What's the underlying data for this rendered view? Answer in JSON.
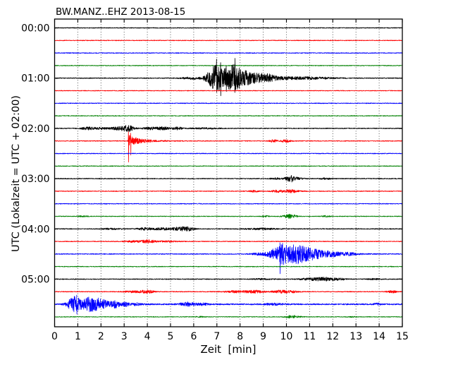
{
  "chart_data": {
    "type": "line",
    "subtype": "seismogram-helicorder-dayplot",
    "title": "BW.MANZ..EHZ 2013-08-15",
    "xlabel": "Zeit  [min]",
    "ylabel": "UTC (Lokalzeit = UTC + 02:00)",
    "x_range": [
      0,
      15
    ],
    "x_ticks": [
      0,
      1,
      2,
      3,
      4,
      5,
      6,
      7,
      8,
      9,
      10,
      11,
      12,
      13,
      14,
      15
    ],
    "grid": "dotted-vertical-per-minute",
    "legend": "none",
    "trace_color_cycle": [
      "#000000",
      "#ff0000",
      "#0000ff",
      "#008000"
    ],
    "minutes_per_row": 15,
    "row_step_minutes": 15,
    "hour_labels": [
      "00:00",
      "01:00",
      "02:00",
      "03:00",
      "04:00",
      "05:00"
    ],
    "rows": [
      {
        "label": "00:00",
        "color": "#000000",
        "noise": 0.55,
        "bumps": [],
        "quakes": [],
        "spikes": []
      },
      {
        "label": "",
        "color": "#ff0000",
        "noise": 0.5,
        "bumps": [],
        "quakes": [],
        "spikes": []
      },
      {
        "label": "",
        "color": "#0000ff",
        "noise": 0.55,
        "bumps": [],
        "quakes": [],
        "spikes": []
      },
      {
        "label": "",
        "color": "#008000",
        "noise": 0.5,
        "bumps": [],
        "quakes": [],
        "spikes": []
      },
      {
        "label": "01:00",
        "color": "#000000",
        "noise": 0.6,
        "bumps": [
          [
            5.95,
            0.35,
            1.4
          ],
          [
            6.65,
            0.15,
            6
          ],
          [
            7.75,
            0.18,
            13
          ],
          [
            8.2,
            0.2,
            5
          ],
          [
            8.6,
            0.3,
            3.5
          ],
          [
            9.15,
            0.3,
            4.2
          ],
          [
            10.2,
            0.7,
            1.4
          ],
          [
            11.4,
            0.6,
            1.0
          ]
        ],
        "quakes": [
          [
            7.0,
            0.35,
            0.7,
            20
          ]
        ],
        "spikes": [
          [
            6.98,
            27,
            20
          ],
          [
            7.16,
            22,
            25
          ],
          [
            7.4,
            17,
            19
          ],
          [
            7.78,
            28,
            14
          ]
        ]
      },
      {
        "label": "",
        "color": "#ff0000",
        "noise": 0.5,
        "bumps": [],
        "quakes": [],
        "spikes": []
      },
      {
        "label": "",
        "color": "#0000ff",
        "noise": 0.55,
        "bumps": [],
        "quakes": [],
        "spikes": []
      },
      {
        "label": "",
        "color": "#008000",
        "noise": 0.5,
        "bumps": [],
        "quakes": [],
        "spikes": []
      },
      {
        "label": "02:00",
        "color": "#000000",
        "noise": 0.6,
        "bumps": [
          [
            1.4,
            0.2,
            1.8
          ],
          [
            2.0,
            0.25,
            1.4
          ],
          [
            2.9,
            0.3,
            2.6
          ],
          [
            3.2,
            0.15,
            2.8
          ],
          [
            4.1,
            0.25,
            1.7
          ],
          [
            4.7,
            0.2,
            1.9
          ],
          [
            5.3,
            0.15,
            1.9
          ],
          [
            6.5,
            0.5,
            0.7
          ]
        ],
        "quakes": [],
        "spikes": []
      },
      {
        "label": "",
        "color": "#ff0000",
        "noise": 0.55,
        "bumps": [
          [
            9.45,
            0.12,
            1.6
          ],
          [
            10.0,
            0.15,
            2.0
          ]
        ],
        "quakes": [
          [
            3.22,
            0.06,
            0.5,
            8
          ]
        ],
        "spikes": [
          [
            3.18,
            13,
            30
          ],
          [
            3.28,
            11,
            20
          ]
        ]
      },
      {
        "label": "",
        "color": "#0000ff",
        "noise": 0.55,
        "bumps": [],
        "quakes": [],
        "spikes": []
      },
      {
        "label": "",
        "color": "#008000",
        "noise": 0.5,
        "bumps": [],
        "quakes": [],
        "spikes": []
      },
      {
        "label": "03:00",
        "color": "#000000",
        "noise": 0.6,
        "bumps": [
          [
            9.6,
            0.2,
            0.8
          ],
          [
            10.15,
            0.13,
            4.2
          ],
          [
            10.45,
            0.2,
            1.5
          ],
          [
            11.7,
            0.15,
            1.1
          ]
        ],
        "quakes": [],
        "spikes": []
      },
      {
        "label": "",
        "color": "#ff0000",
        "noise": 0.55,
        "bumps": [
          [
            8.6,
            0.15,
            1.1
          ],
          [
            9.6,
            0.2,
            1.4
          ],
          [
            10.2,
            0.25,
            2.0
          ]
        ],
        "quakes": [],
        "spikes": []
      },
      {
        "label": "",
        "color": "#0000ff",
        "noise": 0.55,
        "bumps": [],
        "quakes": [],
        "spikes": []
      },
      {
        "label": "",
        "color": "#008000",
        "noise": 0.5,
        "bumps": [
          [
            1.2,
            0.15,
            0.7
          ],
          [
            9.1,
            0.1,
            0.9
          ],
          [
            10.15,
            0.2,
            2.8
          ],
          [
            11.7,
            0.15,
            0.8
          ]
        ],
        "quakes": [],
        "spikes": []
      },
      {
        "label": "04:00",
        "color": "#000000",
        "noise": 0.6,
        "bumps": [
          [
            2.5,
            0.3,
            0.8
          ],
          [
            3.9,
            0.25,
            1.5
          ],
          [
            4.6,
            0.25,
            1.3
          ],
          [
            5.45,
            0.3,
            2.5
          ],
          [
            5.8,
            0.15,
            1.8
          ],
          [
            8.9,
            0.5,
            1.0
          ]
        ],
        "quakes": [],
        "spikes": []
      },
      {
        "label": "",
        "color": "#ff0000",
        "noise": 0.55,
        "bumps": [
          [
            3.4,
            0.3,
            1.0
          ],
          [
            4.05,
            0.2,
            2.2
          ],
          [
            4.9,
            0.3,
            0.9
          ]
        ],
        "quakes": [],
        "spikes": []
      },
      {
        "label": "",
        "color": "#0000ff",
        "noise": 0.6,
        "bumps": [
          [
            8.9,
            0.3,
            1.5
          ],
          [
            9.55,
            0.25,
            7
          ],
          [
            10.55,
            0.25,
            7
          ],
          [
            11.2,
            0.3,
            4.5
          ],
          [
            11.95,
            0.2,
            3
          ],
          [
            12.6,
            0.3,
            1.6
          ]
        ],
        "quakes": [
          [
            9.9,
            0.35,
            0.9,
            13
          ]
        ],
        "spikes": [
          [
            9.72,
            16,
            28
          ]
        ]
      },
      {
        "label": "",
        "color": "#008000",
        "noise": 0.5,
        "bumps": [],
        "quakes": [],
        "spikes": []
      },
      {
        "label": "05:00",
        "color": "#000000",
        "noise": 0.6,
        "bumps": [
          [
            9.0,
            0.3,
            0.7
          ],
          [
            10.9,
            0.25,
            1.2
          ],
          [
            11.6,
            0.35,
            2.4
          ],
          [
            12.3,
            0.2,
            1.0
          ],
          [
            13.8,
            0.2,
            0.7
          ]
        ],
        "quakes": [],
        "spikes": []
      },
      {
        "label": "",
        "color": "#ff0000",
        "noise": 0.55,
        "bumps": [
          [
            3.4,
            0.3,
            1.2
          ],
          [
            4.0,
            0.2,
            2.2
          ],
          [
            7.8,
            0.3,
            1.4
          ],
          [
            8.65,
            0.3,
            1.9
          ],
          [
            9.75,
            0.25,
            2.0
          ],
          [
            10.3,
            0.2,
            1.1
          ],
          [
            14.55,
            0.15,
            1.7
          ]
        ],
        "quakes": [],
        "spikes": []
      },
      {
        "label": "",
        "color": "#0000ff",
        "noise": 0.9,
        "bumps": [
          [
            1.55,
            0.15,
            6
          ],
          [
            1.85,
            0.12,
            5
          ],
          [
            2.15,
            0.12,
            4.5
          ],
          [
            2.6,
            0.15,
            4.2
          ],
          [
            3.1,
            0.12,
            2.4
          ],
          [
            3.55,
            0.1,
            1.8
          ],
          [
            5.75,
            0.25,
            2.6
          ],
          [
            6.4,
            0.15,
            1.4
          ],
          [
            9.5,
            0.3,
            1.1
          ],
          [
            13.9,
            0.1,
            1.3
          ]
        ],
        "quakes": [
          [
            0.85,
            0.4,
            0.7,
            11
          ]
        ],
        "spikes": [
          [
            0.95,
            13,
            14
          ]
        ]
      },
      {
        "label": "",
        "color": "#008000",
        "noise": 0.5,
        "bumps": [
          [
            6.3,
            0.15,
            0.6
          ],
          [
            10.25,
            0.22,
            2.0
          ],
          [
            12.9,
            0.15,
            0.5
          ]
        ],
        "quakes": [],
        "spikes": []
      }
    ]
  }
}
